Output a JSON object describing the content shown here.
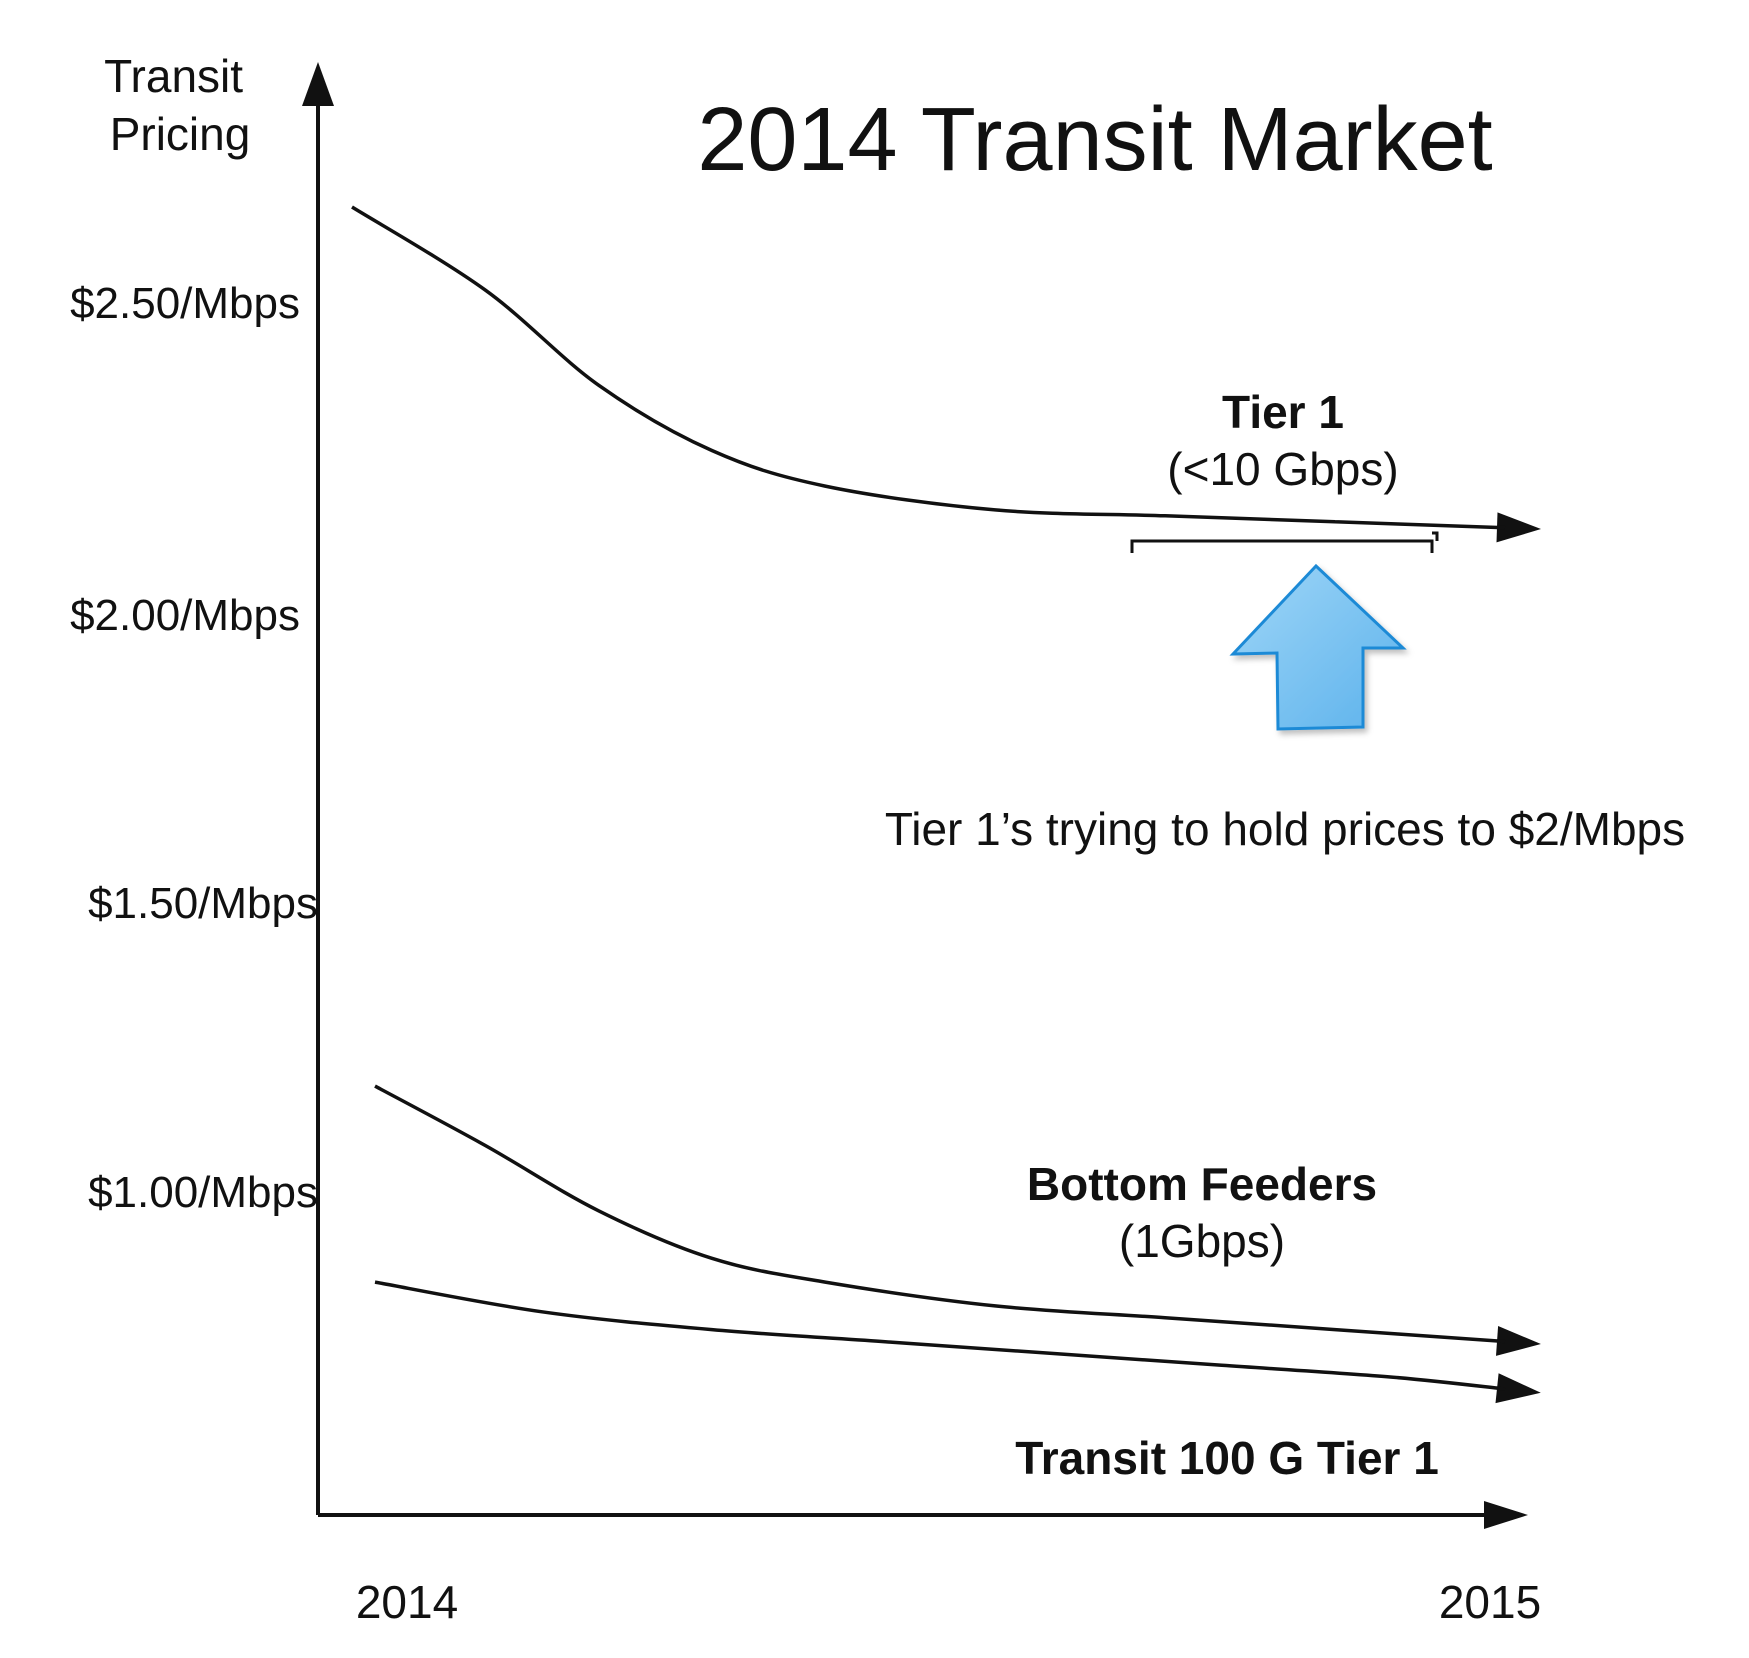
{
  "chart_data": {
    "type": "line",
    "title": "2014 Transit Market",
    "ylabel": "Transit\nPricing",
    "xlabel": "",
    "x_ticks": [
      "2014",
      "2015"
    ],
    "y_ticks": [
      "$2.50/Mbps",
      "$2.00/Mbps",
      "$1.50/Mbps",
      "$1.00/Mbps"
    ],
    "y_tick_values": [
      2.5,
      2.0,
      1.5,
      1.0
    ],
    "xlim": [
      2014,
      2015
    ],
    "ylim": [
      0,
      3.0
    ],
    "grid": false,
    "series": [
      {
        "name": "Tier 1 (<10 Gbps)",
        "label_main": "Tier 1",
        "label_sub": "(<10 Gbps)",
        "x": [
          2014,
          2014.1,
          2014.2,
          2014.3,
          2014.4,
          2014.55,
          2014.7,
          2014.85,
          2015
        ],
        "y": [
          2.66,
          2.52,
          2.36,
          2.25,
          2.19,
          2.15,
          2.14,
          2.13,
          2.12
        ]
      },
      {
        "name": "Bottom Feeders (1Gbps)",
        "label_main": "Bottom Feeders",
        "label_sub": "(1Gbps)",
        "x": [
          2014,
          2014.1,
          2014.2,
          2014.3,
          2014.4,
          2014.55,
          2014.7,
          2014.85,
          2015
        ],
        "y": [
          1.18,
          1.08,
          0.97,
          0.89,
          0.85,
          0.81,
          0.79,
          0.77,
          0.75
        ]
      },
      {
        "name": "Transit 100 G Tier 1",
        "label_main": "Transit 100 G Tier 1",
        "label_sub": "",
        "x": [
          2014,
          2014.15,
          2014.3,
          2014.45,
          2014.6,
          2014.75,
          2014.9,
          2015
        ],
        "y": [
          0.85,
          0.8,
          0.77,
          0.75,
          0.73,
          0.71,
          0.69,
          0.67
        ]
      }
    ],
    "annotations": [
      {
        "text": "Tier 1’s trying to hold prices to $2/Mbps",
        "target_y": 2.1,
        "bracket_x": [
          2014.7,
          2014.96
        ],
        "arrow_color": "#7cc4f2",
        "arrow_stroke": "#1f8ad6"
      }
    ]
  }
}
